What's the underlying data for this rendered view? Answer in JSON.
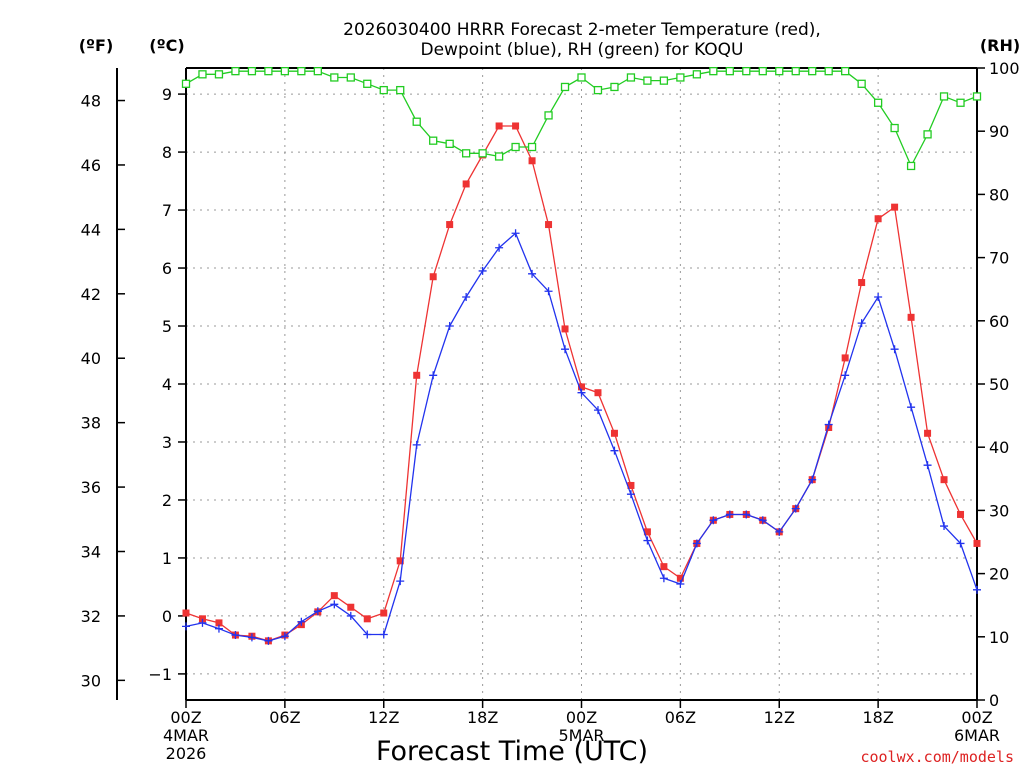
{
  "title_line1": "2026030400 HRRR Forecast 2-meter Temperature (red),",
  "title_line2": "Dewpoint (blue), RH (green) for KOQU",
  "unit_f": "(ºF)",
  "unit_c": "(ºC)",
  "unit_rh": "(RH)",
  "credit": "coolwx.com/models",
  "chart_data": {
    "type": "line",
    "title": "2026030400 HRRR Forecast 2-meter Temperature (red), Dewpoint (blue), RH (green) for KOQU",
    "xlabel": "Forecast Time (UTC)",
    "x_hours": [
      0,
      1,
      2,
      3,
      4,
      5,
      6,
      7,
      8,
      9,
      10,
      11,
      12,
      13,
      14,
      15,
      16,
      17,
      18,
      19,
      20,
      21,
      22,
      23,
      24,
      25,
      26,
      27,
      28,
      29,
      30,
      31,
      32,
      33,
      34,
      35,
      36,
      37,
      38,
      39,
      40,
      41,
      42,
      43,
      44,
      45,
      46,
      47,
      48
    ],
    "x_ticks": [
      {
        "hour": 0,
        "label": "00Z",
        "sub1": "4MAR",
        "sub2": "2026"
      },
      {
        "hour": 6,
        "label": "06Z"
      },
      {
        "hour": 12,
        "label": "12Z"
      },
      {
        "hour": 18,
        "label": "18Z"
      },
      {
        "hour": 24,
        "label": "00Z",
        "sub1": "5MAR"
      },
      {
        "hour": 30,
        "label": "06Z"
      },
      {
        "hour": 36,
        "label": "12Z"
      },
      {
        "hour": 42,
        "label": "18Z"
      },
      {
        "hour": 48,
        "label": "00Z",
        "sub1": "6MAR"
      }
    ],
    "left_axis_c": {
      "label": "(ºC)",
      "range": [
        -1.45,
        9.45
      ],
      "ticks": [
        -1,
        0,
        1,
        2,
        3,
        4,
        5,
        6,
        7,
        8,
        9
      ]
    },
    "left_axis_f": {
      "label": "(ºF)",
      "range": [
        29.39,
        49.01
      ],
      "ticks": [
        30,
        32,
        34,
        36,
        38,
        40,
        42,
        44,
        46,
        48
      ]
    },
    "right_axis_rh": {
      "label": "(RH)",
      "range": [
        0,
        100
      ],
      "ticks": [
        0,
        10,
        20,
        30,
        40,
        50,
        60,
        70,
        80,
        90,
        100
      ]
    },
    "grid": true,
    "series": [
      {
        "name": "Temperature",
        "color": "#ee3333",
        "axis": "c",
        "marker": "filled-square",
        "values": [
          0.05,
          -0.05,
          -0.12,
          -0.33,
          -0.35,
          -0.43,
          -0.33,
          -0.15,
          0.07,
          0.35,
          0.15,
          -0.05,
          0.05,
          0.95,
          4.15,
          5.85,
          6.75,
          7.45,
          7.95,
          8.45,
          8.45,
          7.85,
          6.75,
          4.95,
          3.95,
          3.85,
          3.15,
          2.25,
          1.45,
          0.85,
          0.65,
          1.25,
          1.65,
          1.75,
          1.75,
          1.65,
          1.45,
          1.85,
          2.35,
          3.25,
          4.45,
          5.75,
          6.85,
          7.05,
          5.15,
          3.15,
          2.35,
          1.75,
          1.25
        ]
      },
      {
        "name": "Dewpoint",
        "color": "#2233ee",
        "axis": "c",
        "marker": "plus",
        "values": [
          -0.18,
          -0.12,
          -0.22,
          -0.33,
          -0.37,
          -0.43,
          -0.35,
          -0.1,
          0.08,
          0.2,
          0.0,
          -0.32,
          -0.32,
          0.6,
          2.95,
          4.15,
          5.0,
          5.5,
          5.95,
          6.35,
          6.6,
          5.9,
          5.6,
          4.6,
          3.85,
          3.55,
          2.85,
          2.1,
          1.3,
          0.65,
          0.55,
          1.25,
          1.65,
          1.75,
          1.75,
          1.65,
          1.45,
          1.85,
          2.35,
          3.3,
          4.15,
          5.05,
          5.5,
          4.6,
          3.6,
          2.6,
          1.55,
          1.25,
          0.45
        ]
      },
      {
        "name": "RH",
        "color": "#22cc22",
        "axis": "rh",
        "marker": "open-square",
        "values": [
          97.5,
          99,
          99,
          99.5,
          99.5,
          99.5,
          99.5,
          99.5,
          99.5,
          98.5,
          98.5,
          97.5,
          96.5,
          96.5,
          91.5,
          88.5,
          88,
          86.5,
          86.5,
          86,
          87.5,
          87.5,
          92.5,
          97,
          98.5,
          96.5,
          97,
          98.5,
          98,
          98,
          98.5,
          99,
          99.5,
          99.5,
          99.5,
          99.5,
          99.5,
          99.5,
          99.5,
          99.5,
          99.5,
          97.5,
          94.5,
          90.5,
          84.5,
          89.5,
          95.5,
          94.5,
          95.5
        ]
      }
    ]
  }
}
